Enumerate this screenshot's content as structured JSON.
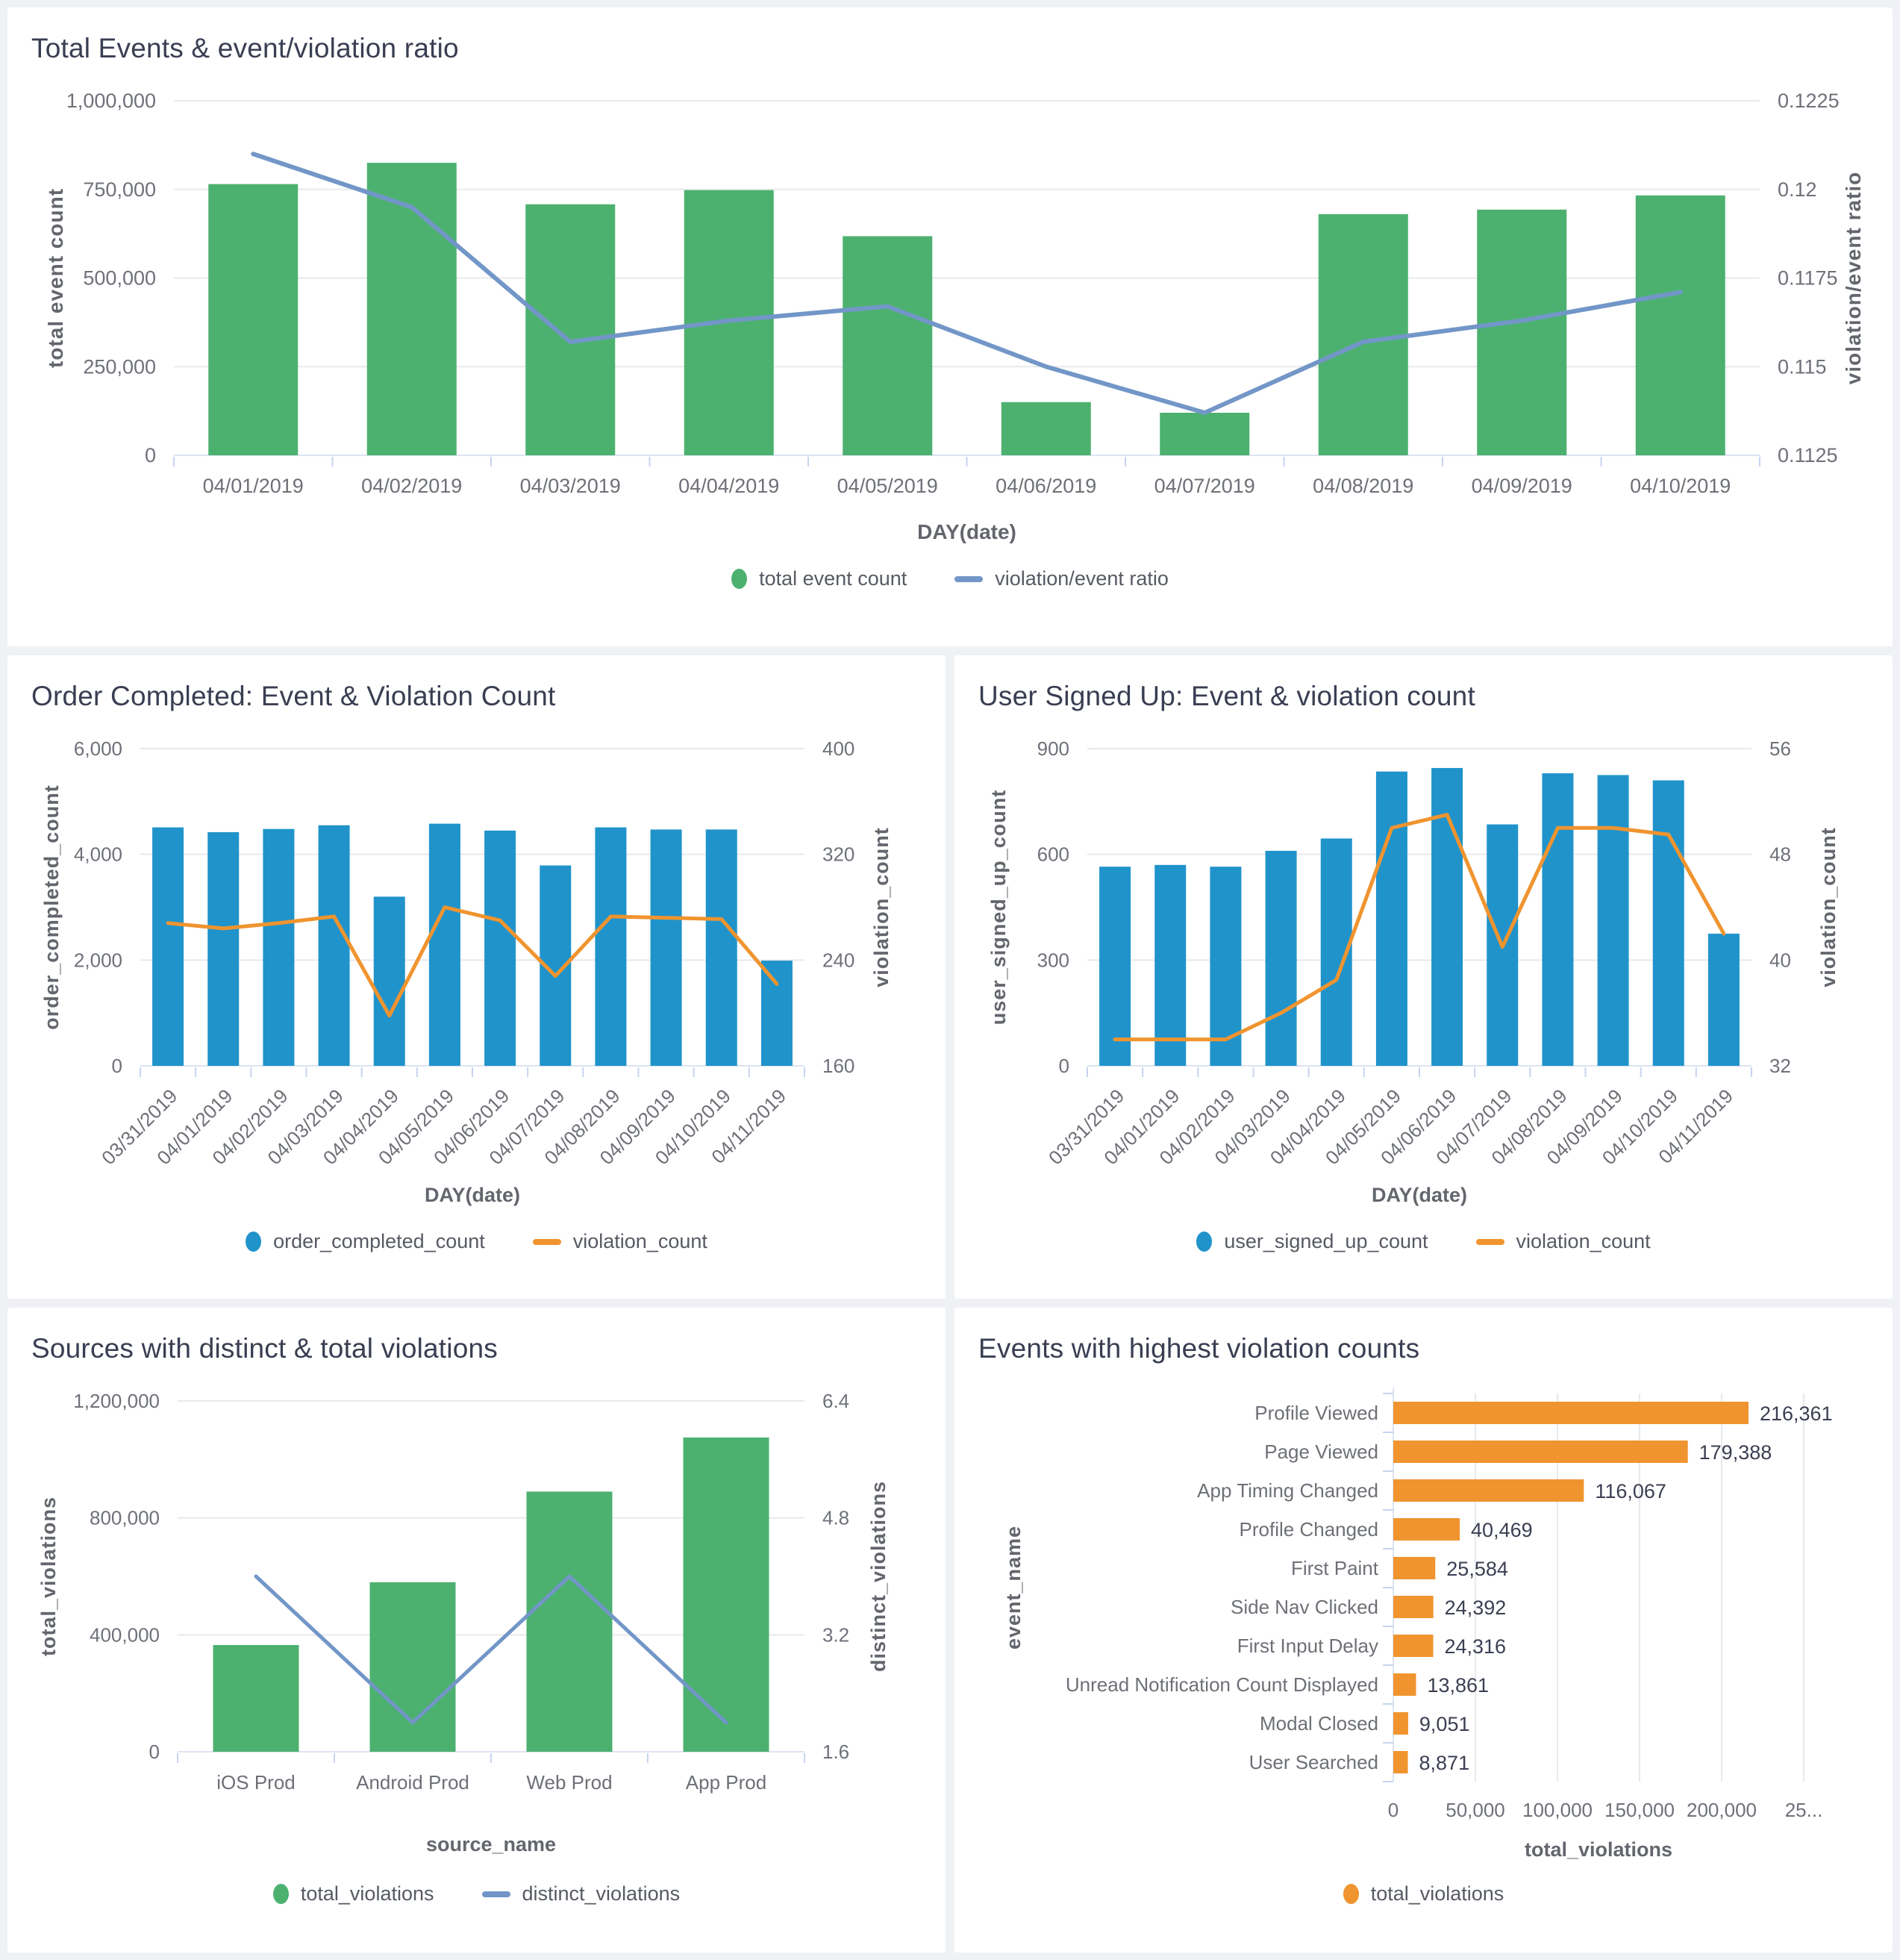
{
  "page": {
    "background": "#eff1f4",
    "panel_background": "#ffffff",
    "palette": {
      "green": "#4cb16f",
      "blue": "#2093cb",
      "orange": "#f0942f",
      "steel_blue_line": "#7296c7",
      "title_text": "#3a3e52",
      "tick_text": "#6e7179",
      "axis_title_text": "#63666d"
    }
  },
  "chart_data": [
    {
      "id": "total-events",
      "type": "bar+line",
      "title": "Total Events & event/violation ratio",
      "xlabel": "DAY(date)",
      "categories": [
        "04/01/2019",
        "04/02/2019",
        "04/03/2019",
        "04/04/2019",
        "04/05/2019",
        "04/06/2019",
        "04/07/2019",
        "04/08/2019",
        "04/09/2019",
        "04/10/2019"
      ],
      "bar": {
        "name": "total event count",
        "color": "#4cb16f",
        "values": [
          765000,
          825000,
          708000,
          748000,
          618000,
          150000,
          120000,
          680000,
          693000,
          733000
        ],
        "axis": {
          "label": "total event count",
          "min": 0,
          "max": 1000000,
          "ticks": [
            {
              "v": 0,
              "label": "0"
            },
            {
              "v": 250000,
              "label": "250,000"
            },
            {
              "v": 500000,
              "label": "500,000"
            },
            {
              "v": 750000,
              "label": "750,000"
            },
            {
              "v": 1000000,
              "label": "1,000,000"
            }
          ]
        }
      },
      "line": {
        "name": "violation/event ratio",
        "color": "#7296c7",
        "values": [
          0.121,
          0.1195,
          0.1157,
          0.1163,
          0.1167,
          0.115,
          0.1137,
          0.1157,
          0.1163,
          0.1171
        ],
        "axis": {
          "label": "violation/event ratio",
          "min": 0.1125,
          "max": 0.1225,
          "ticks": [
            {
              "v": 0.1125,
              "label": "0.1125"
            },
            {
              "v": 0.115,
              "label": "0.115"
            },
            {
              "v": 0.1175,
              "label": "0.1175"
            },
            {
              "v": 0.12,
              "label": "0.12"
            },
            {
              "v": 0.1225,
              "label": "0.1225"
            }
          ]
        }
      },
      "legend": [
        {
          "type": "dot",
          "color": "#4cb16f",
          "label": "total event count"
        },
        {
          "type": "line",
          "color": "#7296c7",
          "label": "violation/event ratio"
        }
      ]
    },
    {
      "id": "order-completed",
      "type": "bar+line",
      "title": "Order Completed: Event & Violation Count",
      "xlabel": "DAY(date)",
      "categories": [
        "03/31/2019",
        "04/01/2019",
        "04/02/2019",
        "04/03/2019",
        "04/04/2019",
        "04/05/2019",
        "04/06/2019",
        "04/07/2019",
        "04/08/2019",
        "04/09/2019",
        "04/10/2019",
        "04/11/2019"
      ],
      "bar": {
        "name": "order_completed_count",
        "color": "#2093cb",
        "values": [
          4510,
          4420,
          4480,
          4550,
          3200,
          4580,
          4450,
          3790,
          4510,
          4470,
          4470,
          1990
        ],
        "axis": {
          "label": "order_completed_count",
          "min": 0,
          "max": 6000,
          "ticks": [
            {
              "v": 0,
              "label": "0"
            },
            {
              "v": 2000,
              "label": "2,000"
            },
            {
              "v": 4000,
              "label": "4,000"
            },
            {
              "v": 6000,
              "label": "6,000"
            }
          ]
        }
      },
      "line": {
        "name": "violation_count",
        "color": "#f0942f",
        "values": [
          268,
          264,
          268,
          273,
          198,
          280,
          270,
          228,
          273,
          272,
          271,
          222
        ],
        "axis": {
          "label": "violation_count",
          "min": 160,
          "max": 400,
          "ticks": [
            {
              "v": 160,
              "label": "160"
            },
            {
              "v": 240,
              "label": "240"
            },
            {
              "v": 320,
              "label": "320"
            },
            {
              "v": 400,
              "label": "400"
            }
          ]
        }
      },
      "legend": [
        {
          "type": "dot",
          "color": "#2093cb",
          "label": "order_completed_count"
        },
        {
          "type": "line",
          "color": "#f0942f",
          "label": "violation_count"
        }
      ]
    },
    {
      "id": "user-signed-up",
      "type": "bar+line",
      "title": "User Signed Up: Event & violation count",
      "xlabel": "DAY(date)",
      "categories": [
        "03/31/2019",
        "04/01/2019",
        "04/02/2019",
        "04/03/2019",
        "04/04/2019",
        "04/05/2019",
        "04/06/2019",
        "04/07/2019",
        "04/08/2019",
        "04/09/2019",
        "04/10/2019",
        "04/11/2019"
      ],
      "bar": {
        "name": "user_signed_up_count",
        "color": "#2093cb",
        "values": [
          565,
          570,
          565,
          610,
          645,
          835,
          845,
          685,
          830,
          825,
          810,
          375
        ],
        "axis": {
          "label": "user_signed_up_count",
          "min": 0,
          "max": 900,
          "ticks": [
            {
              "v": 0,
              "label": "0"
            },
            {
              "v": 300,
              "label": "300"
            },
            {
              "v": 600,
              "label": "600"
            },
            {
              "v": 900,
              "label": "900"
            }
          ]
        }
      },
      "line": {
        "name": "violation_count",
        "color": "#f0942f",
        "values": [
          34,
          34,
          34,
          36,
          38.5,
          50,
          51,
          41,
          50,
          50,
          49.5,
          42
        ],
        "axis": {
          "label": "violation_count",
          "min": 32,
          "max": 56,
          "ticks": [
            {
              "v": 32,
              "label": "32"
            },
            {
              "v": 40,
              "label": "40"
            },
            {
              "v": 48,
              "label": "48"
            },
            {
              "v": 56,
              "label": "56"
            }
          ]
        }
      },
      "legend": [
        {
          "type": "dot",
          "color": "#2093cb",
          "label": "user_signed_up_count"
        },
        {
          "type": "line",
          "color": "#f0942f",
          "label": "violation_count"
        }
      ]
    },
    {
      "id": "sources",
      "type": "bar+line",
      "title": "Sources with distinct & total violations",
      "xlabel": "source_name",
      "categories": [
        "iOS Prod",
        "Android Prod",
        "Web Prod",
        "App Prod"
      ],
      "bar": {
        "name": "total_violations",
        "color": "#4cb16f",
        "values": [
          365000,
          580000,
          890000,
          1075000
        ],
        "axis": {
          "label": "total_violations",
          "min": 0,
          "max": 1200000,
          "ticks": [
            {
              "v": 0,
              "label": "0"
            },
            {
              "v": 400000,
              "label": "400,000"
            },
            {
              "v": 800000,
              "label": "800,000"
            },
            {
              "v": 1200000,
              "label": "1,200,000"
            }
          ]
        }
      },
      "line": {
        "name": "distinct_violations",
        "color": "#7296c7",
        "values": [
          4.0,
          2.0,
          4.0,
          2.0
        ],
        "axis": {
          "label": "distinct_violations",
          "min": 1.6,
          "max": 6.4,
          "ticks": [
            {
              "v": 1.6,
              "label": "1.6"
            },
            {
              "v": 3.2,
              "label": "3.2"
            },
            {
              "v": 4.8,
              "label": "4.8"
            },
            {
              "v": 6.4,
              "label": "6.4"
            }
          ]
        }
      },
      "legend": [
        {
          "type": "dot",
          "color": "#4cb16f",
          "label": "total_violations"
        },
        {
          "type": "line",
          "color": "#7296c7",
          "label": "distinct_violations"
        }
      ]
    },
    {
      "id": "events-top",
      "type": "hbar",
      "title": "Events with highest violation counts",
      "xlabel": "total_violations",
      "ylabel": "event_name",
      "color": "#f0942f",
      "categories": [
        "Profile Viewed",
        "Page Viewed",
        "App Timing Changed",
        "Profile Changed",
        "First Paint",
        "Side Nav Clicked",
        "First Input Delay",
        "Unread Notification Count Displayed",
        "Modal Closed",
        "User Searched"
      ],
      "values": [
        216361,
        179388,
        116067,
        40469,
        25584,
        24392,
        24316,
        13861,
        9051,
        8871
      ],
      "value_labels": [
        "216,361",
        "179,388",
        "116,067",
        "40,469",
        "25,584",
        "24,392",
        "24,316",
        "13,861",
        "9,051",
        "8,871"
      ],
      "axis": {
        "min": 0,
        "max": 250000,
        "ticks": [
          {
            "v": 0,
            "label": "0"
          },
          {
            "v": 50000,
            "label": "50,000"
          },
          {
            "v": 100000,
            "label": "100,000"
          },
          {
            "v": 150000,
            "label": "150,000"
          },
          {
            "v": 200000,
            "label": "200,000"
          },
          {
            "v": 250000,
            "label": "25..."
          }
        ]
      },
      "legend": [
        {
          "type": "dot",
          "color": "#f0942f",
          "label": "total_violations"
        }
      ]
    }
  ]
}
